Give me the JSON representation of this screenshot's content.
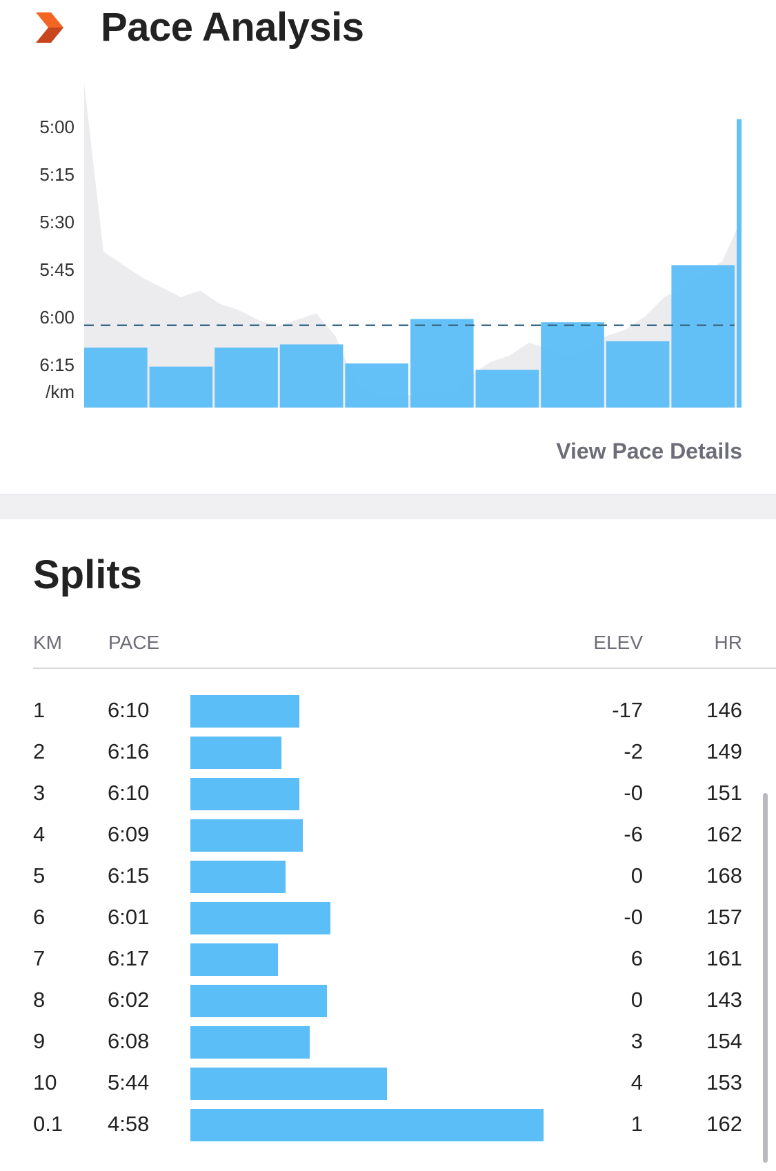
{
  "header": {
    "title": "Pace Analysis",
    "brand_icon": "chevron-logo-icon",
    "brand_colors": [
      "#f26522",
      "#c8461d"
    ]
  },
  "pace_chart": {
    "view_details_label": "View Pace Details",
    "colors": {
      "bar": "#5bbef7",
      "elevation_fill": "#ececef",
      "average_line": "#3d6a87"
    }
  },
  "chart_data": {
    "type": "bar",
    "ylabel": "/km",
    "yticks": [
      "5:00",
      "5:15",
      "5:30",
      "5:45",
      "6:00",
      "6:15"
    ],
    "ylim_seconds_per_km": [
      300,
      390
    ],
    "y_inverted": true,
    "average_pace_seconds": 363,
    "categories": [
      "1",
      "2",
      "3",
      "4",
      "5",
      "6",
      "7",
      "8",
      "9",
      "10",
      "0.1"
    ],
    "values_seconds_per_km": [
      370,
      376,
      370,
      369,
      375,
      361,
      377,
      362,
      368,
      344,
      298
    ],
    "widths_km": [
      1,
      1,
      1,
      1,
      1,
      1,
      1,
      1,
      1,
      1,
      0.1
    ],
    "background_series": {
      "name": "elevation",
      "values": [
        100,
        48,
        44,
        40,
        37,
        34,
        36,
        32,
        30,
        27,
        25,
        27,
        29,
        22,
        8,
        4,
        3,
        4,
        5,
        4,
        10,
        14,
        16,
        20,
        18,
        16,
        18,
        22,
        24,
        28,
        34,
        37,
        41,
        45,
        58
      ]
    }
  },
  "splits": {
    "title": "Splits",
    "columns": {
      "km": "KM",
      "pace": "PACE",
      "elev": "ELEV",
      "hr": "HR"
    },
    "rows": [
      {
        "km": "1",
        "pace": "6:10",
        "elev": "-17",
        "hr": "146",
        "bar_fraction": 0.308
      },
      {
        "km": "2",
        "pace": "6:16",
        "elev": "-2",
        "hr": "149",
        "bar_fraction": 0.257
      },
      {
        "km": "3",
        "pace": "6:10",
        "elev": "-0",
        "hr": "151",
        "bar_fraction": 0.308
      },
      {
        "km": "4",
        "pace": "6:09",
        "elev": "-6",
        "hr": "162",
        "bar_fraction": 0.318
      },
      {
        "km": "5",
        "pace": "6:15",
        "elev": "0",
        "hr": "168",
        "bar_fraction": 0.269
      },
      {
        "km": "6",
        "pace": "6:01",
        "elev": "-0",
        "hr": "157",
        "bar_fraction": 0.397
      },
      {
        "km": "7",
        "pace": "6:17",
        "elev": "6",
        "hr": "161",
        "bar_fraction": 0.248
      },
      {
        "km": "8",
        "pace": "6:02",
        "elev": "0",
        "hr": "143",
        "bar_fraction": 0.387
      },
      {
        "km": "9",
        "pace": "6:08",
        "elev": "3",
        "hr": "154",
        "bar_fraction": 0.337
      },
      {
        "km": "10",
        "pace": "5:44",
        "elev": "4",
        "hr": "153",
        "bar_fraction": 0.557
      },
      {
        "km": "0.1",
        "pace": "4:58",
        "elev": "1",
        "hr": "162",
        "bar_fraction": 1.0
      }
    ]
  }
}
